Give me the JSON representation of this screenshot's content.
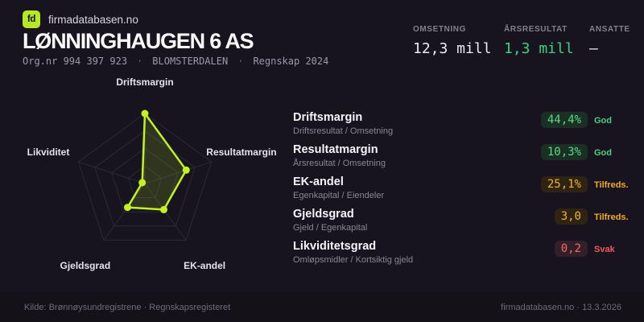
{
  "colors": {
    "background": "#171420",
    "accent_lime": "#b6e823",
    "chart_stroke": "#c3f122",
    "good_green": "#46d17c",
    "ok_amber": "#f2ab1f",
    "weak_red": "#f25860"
  },
  "header": {
    "logo_text": "fd",
    "brand": "firmadatabasen.no",
    "company_name": "LØNNINGHAUGEN 6 AS",
    "org_nr": "Org.nr 994 397 923",
    "separator": "·",
    "location": "BLOMSTERDALEN",
    "fiscal": "Regnskap 2024"
  },
  "stats": [
    {
      "label": "OMSETNING",
      "value": "12,3 mill",
      "color": "white"
    },
    {
      "label": "ÅRSRESULTAT",
      "value": "1,3 mill",
      "color": "green"
    },
    {
      "label": "ANSATTE",
      "value": "–",
      "color": "white"
    }
  ],
  "chart_data": {
    "type": "radar",
    "axes": [
      "Driftsmargin",
      "Resultatmargin",
      "EK-andel",
      "Gjeldsgrad",
      "Likviditet"
    ],
    "values_normalized": [
      1.0,
      0.62,
      0.46,
      0.42,
      0.04
    ],
    "actual_values": [
      "44,4%",
      "10,3%",
      "25,1%",
      "3,0",
      "0,2"
    ],
    "rings": 4,
    "grid_color": "#2c2937",
    "stroke_color": "#c3f122",
    "fill_color": "rgba(195,241,34,0.15)",
    "point_radius": 4.5,
    "legend": "none",
    "title": ""
  },
  "metrics": [
    {
      "title": "Driftsmargin",
      "formula": "Driftsresultat / Omsetning",
      "value": "44,4%",
      "status": "God",
      "level": "good"
    },
    {
      "title": "Resultatmargin",
      "formula": "Årsresultat / Omsetning",
      "value": "10,3%",
      "status": "God",
      "level": "good"
    },
    {
      "title": "EK-andel",
      "formula": "Egenkapital / Eiendeler",
      "value": "25,1%",
      "status": "Tilfreds.",
      "level": "ok"
    },
    {
      "title": "Gjeldsgrad",
      "formula": "Gjeld / Egenkapital",
      "value": "3,0",
      "status": "Tilfreds.",
      "level": "ok"
    },
    {
      "title": "Likviditetsgrad",
      "formula": "Omløpsmidler / Kortsiktig gjeld",
      "value": "0,2",
      "status": "Svak",
      "level": "weak"
    }
  ],
  "footer": {
    "left": "Kilde: Brønnøysundregistrene · Regnskapsregisteret",
    "right": "firmadatabasen.no · 13.3.2026"
  }
}
